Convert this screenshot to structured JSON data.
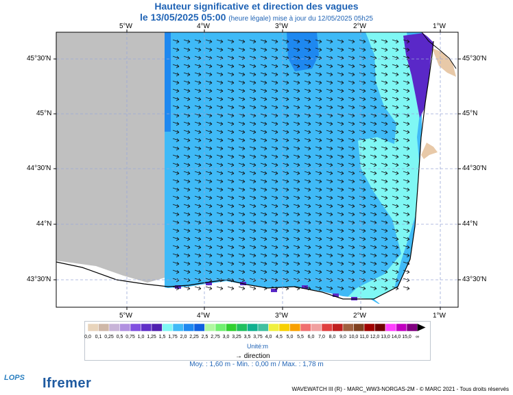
{
  "title": {
    "line1": "Hauteur significative et direction des vagues",
    "line2_main": "le 13/05/2025 05:00",
    "line2_sub": "(heure légale) mise à jour du 12/05/2025 05h25"
  },
  "map": {
    "lon_labels": [
      "5°W",
      "4°W",
      "3°W",
      "2°W",
      "1°W"
    ],
    "lat_labels": [
      "45°30'N",
      "45°N",
      "44°30'N",
      "44°N",
      "43°30'N"
    ],
    "colors": {
      "land": "#c0c0c0",
      "sea_main": "#3fbaf7",
      "sea_light": "#7ff7f4",
      "sea_dark": "#1e88f0",
      "sea_violet": "#5a28c8",
      "coast": "#e8c9a8",
      "grid": "#9aa8d8"
    }
  },
  "legend": {
    "labels": [
      "0,0",
      "0,1",
      "0,25",
      "0,5",
      "0,75",
      "1,0",
      "1,25",
      "1,5",
      "1,75",
      "2,0",
      "2,25",
      "2,5",
      "2,75",
      "3,0",
      "3,25",
      "3,5",
      "3,75",
      "4,0",
      "4,5",
      "5,0",
      "5,5",
      "6,0",
      "7,0",
      "8,0",
      "9,0",
      "10,0",
      "11,0",
      "12,0",
      "13,0",
      "14,0",
      "15,0",
      "∞"
    ],
    "colors": [
      "#e8d4bc",
      "#cfb8a8",
      "#c8b4d8",
      "#b090e0",
      "#8050e0",
      "#6030c8",
      "#5020b0",
      "#7ff7f4",
      "#3fbaf7",
      "#1e88f0",
      "#1060e0",
      "#b0f8a0",
      "#70f070",
      "#30d030",
      "#20c060",
      "#10b090",
      "#40c0a0",
      "#f0f040",
      "#f8d000",
      "#f8a000",
      "#f07070",
      "#f0a0a0",
      "#e04040",
      "#c02020",
      "#a06040",
      "#804020",
      "#a00000",
      "#700000",
      "#ff40ff",
      "#c000c0",
      "#800080"
    ],
    "unit": "Unité:m",
    "direction_label": "direction"
  },
  "stats": "Moy. : 1,60 m   -   Min. : 0,00 m / Max. : 1,78 m",
  "footer": "WAVEWATCH III (R) - MARC_WW3-NORGAS-2M - © MARC 2021 - Tous droits réservés",
  "logos": {
    "lops": "LOPS",
    "ifremer": "Ifremer"
  }
}
